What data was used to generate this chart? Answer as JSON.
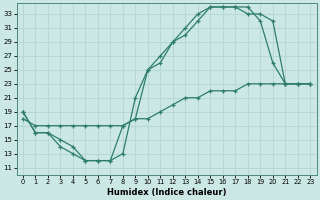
{
  "xlabel": "Humidex (Indice chaleur)",
  "bg_color": "#cce8e4",
  "grid_color": "#b8d8d4",
  "line_color": "#2e7d6e",
  "xlim": [
    -0.5,
    23.5
  ],
  "ylim": [
    10,
    34.5
  ],
  "xticks": [
    0,
    1,
    2,
    3,
    4,
    5,
    6,
    7,
    8,
    9,
    10,
    11,
    12,
    13,
    14,
    15,
    16,
    17,
    18,
    19,
    20,
    21,
    22,
    23
  ],
  "yticks": [
    11,
    13,
    15,
    17,
    19,
    21,
    23,
    25,
    27,
    29,
    31,
    33
  ],
  "line1_x": [
    0,
    1,
    2,
    3,
    4,
    5,
    6,
    7,
    8,
    9,
    10,
    11,
    12,
    13,
    14,
    15,
    16,
    17,
    18,
    19,
    20,
    21,
    22,
    23
  ],
  "line1_y": [
    19,
    16,
    16,
    14,
    13,
    12,
    12,
    12,
    13,
    21,
    25,
    26,
    29,
    30,
    32,
    34,
    34,
    34,
    34,
    32,
    26,
    23,
    23,
    23
  ],
  "line2_x": [
    0,
    1,
    2,
    3,
    4,
    5,
    6,
    7,
    8,
    9,
    10,
    11,
    12,
    13,
    14,
    15,
    16,
    17,
    18,
    19,
    20,
    21,
    22,
    23
  ],
  "line2_y": [
    19,
    16,
    16,
    15,
    14,
    12,
    12,
    12,
    17,
    18,
    25,
    27,
    29,
    31,
    33,
    34,
    34,
    34,
    33,
    33,
    32,
    23,
    23,
    23
  ],
  "line3_x": [
    0,
    1,
    2,
    3,
    4,
    5,
    6,
    7,
    8,
    9,
    10,
    11,
    12,
    13,
    14,
    15,
    16,
    17,
    18,
    19,
    20,
    21,
    22,
    23
  ],
  "line3_y": [
    18,
    17,
    17,
    17,
    17,
    17,
    17,
    17,
    17,
    18,
    18,
    19,
    20,
    21,
    21,
    22,
    22,
    22,
    23,
    23,
    23,
    23,
    23,
    23
  ]
}
